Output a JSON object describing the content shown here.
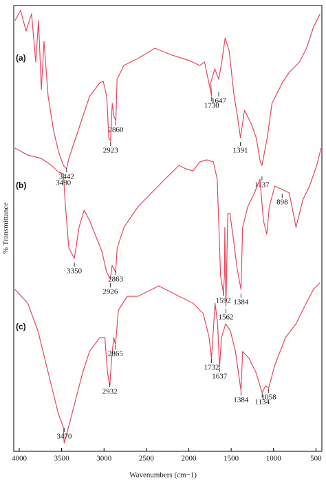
{
  "chart_data": {
    "type": "line",
    "x_label": "Wavenumbers (cm−1)",
    "y_label": "% Transmittance",
    "xlim": [
      4065,
      430
    ],
    "ylim": [
      0,
      647
    ],
    "xticks": [
      4000,
      3500,
      3000,
      2500,
      2000,
      1500,
      1000,
      500
    ],
    "series": [
      {
        "name": "(a)",
        "color": "#e8445c",
        "x": [
          4050,
          3985,
          3920,
          3855,
          3805,
          3773,
          3740,
          3708,
          3659,
          3594,
          3537,
          3480,
          3442,
          3415,
          3334,
          3253,
          3171,
          3049,
          3009,
          2968,
          2944,
          2923,
          2903,
          2880,
          2860,
          2846,
          2765,
          2602,
          2399,
          2196,
          1993,
          1871,
          1814,
          1730,
          1741,
          1693,
          1647,
          1611,
          1571,
          1522,
          1465,
          1424,
          1391,
          1343,
          1262,
          1205,
          1156,
          1137,
          1075,
          1018,
          896,
          815,
          693,
          612,
          531,
          450
        ],
        "values": [
          625,
          640,
          610,
          635,
          565,
          625,
          525,
          595,
          515,
          465,
          435,
          415,
          410,
          425,
          455,
          485,
          515,
          535,
          537,
          515,
          455,
          450,
          505,
          485,
          480,
          540,
          560,
          570,
          585,
          575,
          567,
          560,
          565,
          515,
          535,
          555,
          540,
          565,
          600,
          580,
          515,
          485,
          455,
          495,
          475,
          455,
          420,
          415,
          455,
          505,
          535,
          550,
          565,
          585,
          615,
          635
        ],
        "annotations": [
          {
            "x": 3442,
            "y": 412
          },
          {
            "x": 3480,
            "y": 403
          },
          {
            "x": 2923,
            "y": 450
          },
          {
            "x": 2860,
            "y": 480
          },
          {
            "x": 1730,
            "y": 515
          },
          {
            "x": 1647,
            "y": 522
          },
          {
            "x": 1391,
            "y": 450
          },
          {
            "x": 1137,
            "y": 400
          }
        ]
      },
      {
        "name": "(b)",
        "color": "#e8445c",
        "x": [
          4050,
          3900,
          3740,
          3620,
          3535,
          3480,
          3455,
          3415,
          3350,
          3295,
          3235,
          3170,
          3090,
          3025,
          2970,
          2926,
          2905,
          2863,
          2845,
          2765,
          2600,
          2440,
          2280,
          2115,
          2035,
          1950,
          1870,
          1790,
          1710,
          1665,
          1645,
          1625,
          1592,
          1580,
          1575,
          1562,
          1540,
          1515,
          1470,
          1430,
          1384,
          1365,
          1305,
          1225,
          1160,
          1120,
          1080,
          1050,
          985,
          898,
          815,
          735,
          655,
          575,
          490,
          440
        ],
        "values": [
          440,
          430,
          425,
          415,
          405,
          403,
          355,
          295,
          280,
          325,
          350,
          335,
          310,
          290,
          260,
          250,
          270,
          260,
          295,
          325,
          355,
          375,
          395,
          415,
          410,
          407,
          420,
          423,
          420,
          395,
          325,
          255,
          230,
          255,
          325,
          210,
          345,
          345,
          305,
          265,
          235,
          325,
          355,
          375,
          395,
          335,
          315,
          355,
          385,
          380,
          375,
          325,
          365,
          385,
          415,
          440
        ],
        "annotations": [
          {
            "x": 3350,
            "y": 275
          },
          {
            "x": 2926,
            "y": 245
          },
          {
            "x": 2863,
            "y": 263
          },
          {
            "x": 1592,
            "y": 232
          },
          {
            "x": 1562,
            "y": 208
          },
          {
            "x": 1384,
            "y": 230
          },
          {
            "x": 898,
            "y": 375
          }
        ]
      },
      {
        "name": "(c)",
        "color": "#e8445c",
        "x": [
          4050,
          3900,
          3780,
          3700,
          3620,
          3540,
          3480,
          3470,
          3440,
          3335,
          3250,
          3170,
          3050,
          2990,
          2960,
          2932,
          2910,
          2885,
          2865,
          2830,
          2725,
          2600,
          2355,
          2115,
          1950,
          1830,
          1760,
          1732,
          1690,
          1660,
          1637,
          1615,
          1565,
          1510,
          1450,
          1384,
          1365,
          1290,
          1210,
          1134,
          1095,
          1058,
          985,
          860,
          735,
          615,
          530,
          450
        ],
        "values": [
          235,
          215,
          175,
          135,
          95,
          55,
          35,
          12,
          25,
          75,
          115,
          145,
          165,
          165,
          115,
          95,
          135,
          165,
          155,
          205,
          225,
          225,
          240,
          225,
          215,
          200,
          165,
          135,
          215,
          185,
          122,
          165,
          185,
          175,
          145,
          88,
          145,
          135,
          115,
          85,
          95,
          92,
          125,
          165,
          185,
          215,
          235,
          245
        ],
        "annotations": [
          {
            "x": 3470,
            "y": 35
          },
          {
            "x": 2932,
            "y": 100
          },
          {
            "x": 2865,
            "y": 155
          },
          {
            "x": 1732,
            "y": 135
          },
          {
            "x": 1637,
            "y": 122
          },
          {
            "x": 1384,
            "y": 88
          },
          {
            "x": 1134,
            "y": 85
          },
          {
            "x": 1058,
            "y": 92
          }
        ]
      }
    ]
  }
}
